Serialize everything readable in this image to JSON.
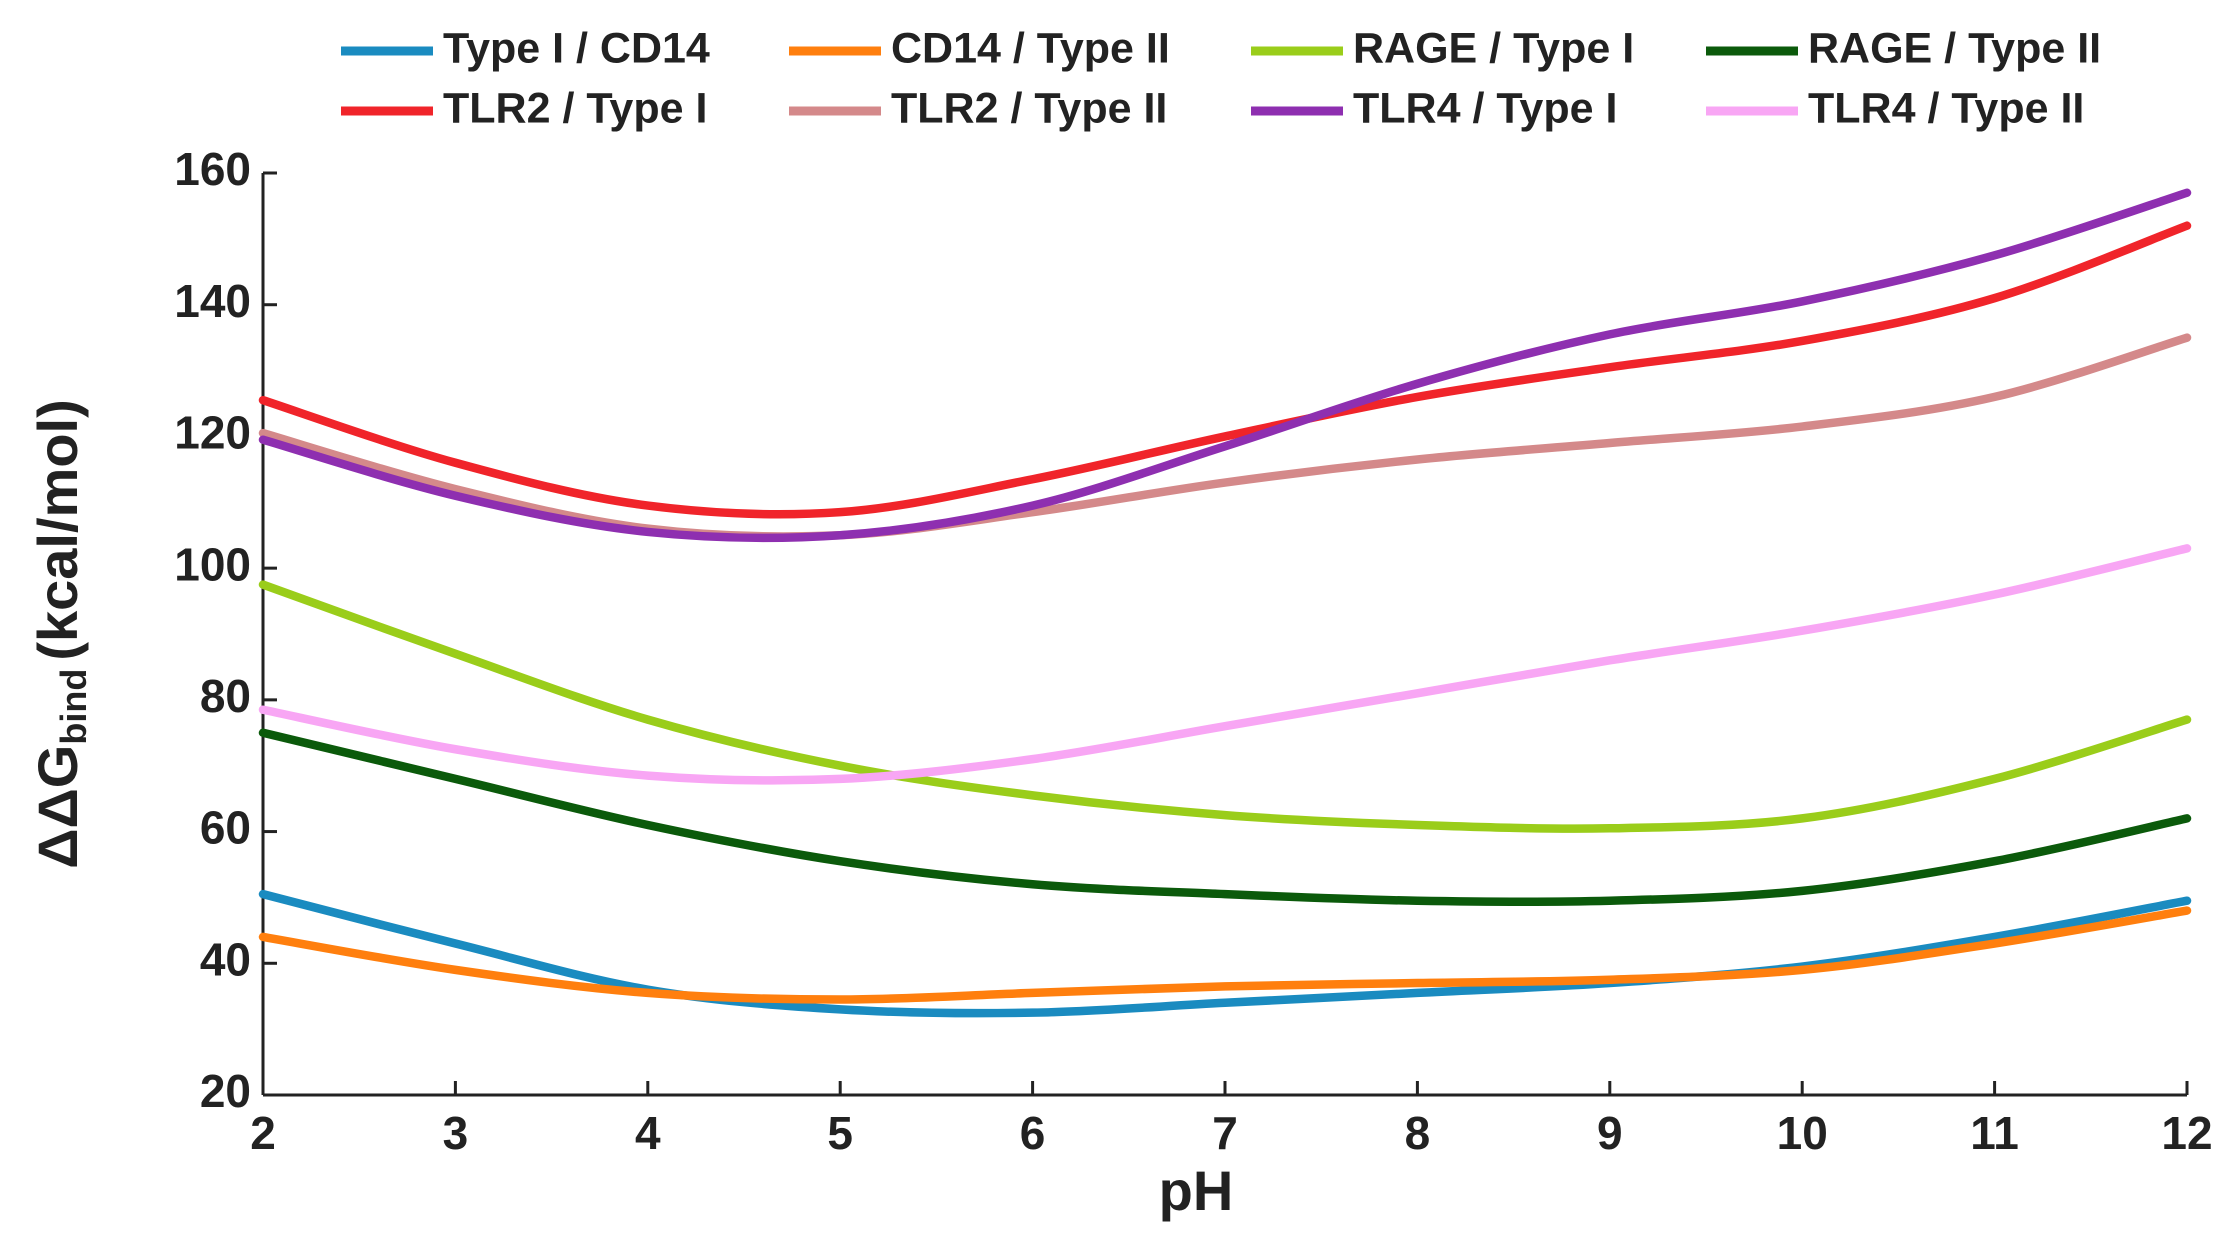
{
  "chart_data": {
    "type": "line",
    "x_label": "pH",
    "y_label": "ΔΔG",
    "y_label_sub": "bind",
    "y_label_unit": "(kcal/mol)",
    "x": [
      2,
      3,
      4,
      5,
      6,
      7,
      8,
      9,
      10,
      11,
      12
    ],
    "series": [
      {
        "name": "Type I / CD14",
        "color": "#1a8bc0",
        "values": [
          50.5,
          43,
          36,
          33,
          32.5,
          34,
          35.5,
          37,
          39.5,
          44,
          49.5
        ]
      },
      {
        "name": "CD14 / Type II",
        "color": "#ff7f0e",
        "values": [
          44,
          39,
          35.5,
          34.5,
          35.5,
          36.5,
          37,
          37.5,
          39,
          43,
          48
        ]
      },
      {
        "name": "RAGE / Type I",
        "color": "#9acd1a",
        "values": [
          97.5,
          87,
          77,
          70,
          65.5,
          62.5,
          61,
          60.5,
          62,
          68,
          77
        ]
      },
      {
        "name": "RAGE / Type II",
        "color": "#0b5a0b",
        "values": [
          75,
          68,
          61,
          55.5,
          52,
          50.5,
          49.5,
          49.5,
          51,
          55.5,
          62
        ]
      },
      {
        "name": "TLR2 / Type I",
        "color": "#f0242a",
        "values": [
          125.5,
          116,
          109.5,
          108.5,
          113.5,
          120,
          126,
          130.5,
          134.5,
          141,
          152
        ]
      },
      {
        "name": "TLR2 / Type II",
        "color": "#d4898a",
        "values": [
          120.5,
          112,
          106,
          105,
          108.5,
          113,
          116.5,
          119,
          121.5,
          126,
          135
        ]
      },
      {
        "name": "TLR4 / Type I",
        "color": "#8e2fb0",
        "values": [
          119.5,
          111,
          105.5,
          105,
          109.5,
          118.5,
          128,
          135.5,
          140.5,
          147.5,
          157
        ]
      },
      {
        "name": "TLR4 / Type II",
        "color": "#f8a6f4",
        "values": [
          78.5,
          72.5,
          68.5,
          68,
          71,
          76,
          81,
          86,
          90.5,
          96,
          103
        ]
      }
    ],
    "xlim": [
      2,
      12
    ],
    "xticks": [
      2,
      3,
      4,
      5,
      6,
      7,
      8,
      9,
      10,
      11,
      12
    ],
    "ylim": [
      20,
      160
    ],
    "yticks": [
      20,
      40,
      60,
      80,
      100,
      120,
      140,
      160
    ],
    "grid": false,
    "legend": "top"
  }
}
